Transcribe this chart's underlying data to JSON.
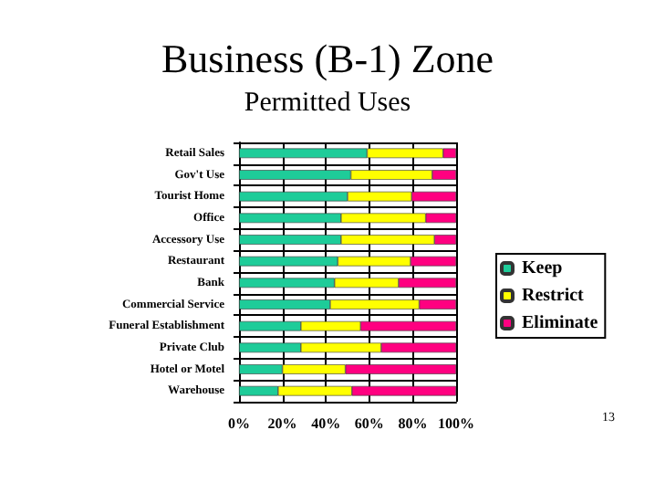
{
  "chart_data": {
    "type": "bar",
    "title": "Business (B-1) Zone",
    "subtitle": "Permitted Uses",
    "orientation": "horizontal",
    "stacked": true,
    "categories": [
      "Retail Sales",
      "Gov't Use",
      "Tourist Home",
      "Office",
      "Accessory Use",
      "Restaurant",
      "Bank",
      "Commercial Service",
      "Funeral Establishment",
      "Private Club",
      "Hotel or Motel",
      "Warehouse"
    ],
    "series": [
      {
        "name": "Keep",
        "color": "#1ecc99",
        "values": [
          59,
          51.5,
          50,
          47,
          47,
          45.5,
          44,
          42,
          28.5,
          28.5,
          20,
          18
        ]
      },
      {
        "name": "Restrict",
        "color": "#ffff00",
        "values": [
          35,
          37.5,
          29.5,
          39,
          43,
          33.5,
          29.5,
          41,
          27.5,
          37,
          29,
          34
        ]
      },
      {
        "name": "Eliminate",
        "color": "#ff0080",
        "values": [
          6,
          11,
          20.5,
          14,
          10,
          21,
          26.5,
          17,
          44,
          34.5,
          51,
          48
        ]
      }
    ],
    "xlim": [
      0,
      100
    ],
    "xticks": [
      {
        "value": 0,
        "label": "0%"
      },
      {
        "value": 20,
        "label": "20%"
      },
      {
        "value": 40,
        "label": "40%"
      },
      {
        "value": 60,
        "label": "60%"
      },
      {
        "value": 80,
        "label": "80%"
      },
      {
        "value": 100,
        "label": "100%"
      }
    ],
    "grid": true,
    "legend": "right",
    "annotations": [
      "13"
    ]
  }
}
